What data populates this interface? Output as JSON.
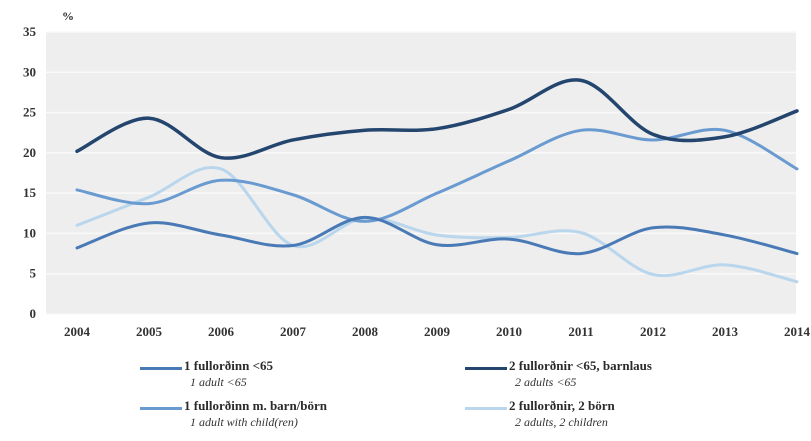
{
  "chart_data": {
    "type": "line",
    "unit_label": "%",
    "x": [
      "2004",
      "2005",
      "2006",
      "2007",
      "2008",
      "2009",
      "2010",
      "2011",
      "2012",
      "2013",
      "2014"
    ],
    "ylim": [
      0,
      35
    ],
    "yticks": [
      0,
      5,
      10,
      15,
      20,
      25,
      30,
      35
    ],
    "grid": true,
    "legend_position": "bottom",
    "series": [
      {
        "name": "1 fullorðinn <65",
        "name_en": "1 adult <65",
        "color": "#4a7ab6",
        "width": 3,
        "values": [
          8.2,
          11.3,
          9.8,
          8.5,
          12.0,
          8.6,
          9.3,
          7.5,
          10.7,
          9.8,
          7.5
        ]
      },
      {
        "name": "2 fullorðnir <65, barnlaus",
        "name_en": "2 adults <65",
        "color": "#23456e",
        "width": 3.5,
        "values": [
          20.2,
          24.3,
          19.4,
          21.6,
          22.8,
          23.0,
          25.4,
          29.0,
          22.3,
          22.0,
          25.2
        ]
      },
      {
        "name": "1 fullorðinn m. barn/börn",
        "name_en": "1 adult with child(ren)",
        "color": "#6a9bd0",
        "width": 3,
        "values": [
          15.4,
          13.7,
          16.6,
          14.8,
          11.5,
          15.0,
          19.0,
          22.8,
          21.6,
          22.8,
          18.0
        ]
      },
      {
        "name": "2 fullorðnir, 2 börn",
        "name_en": "2 adults, 2 children",
        "color": "#b9d6ec",
        "width": 3,
        "values": [
          11.0,
          14.5,
          18.0,
          8.5,
          11.9,
          9.8,
          9.5,
          10.1,
          4.9,
          6.1,
          4.0
        ]
      }
    ]
  }
}
